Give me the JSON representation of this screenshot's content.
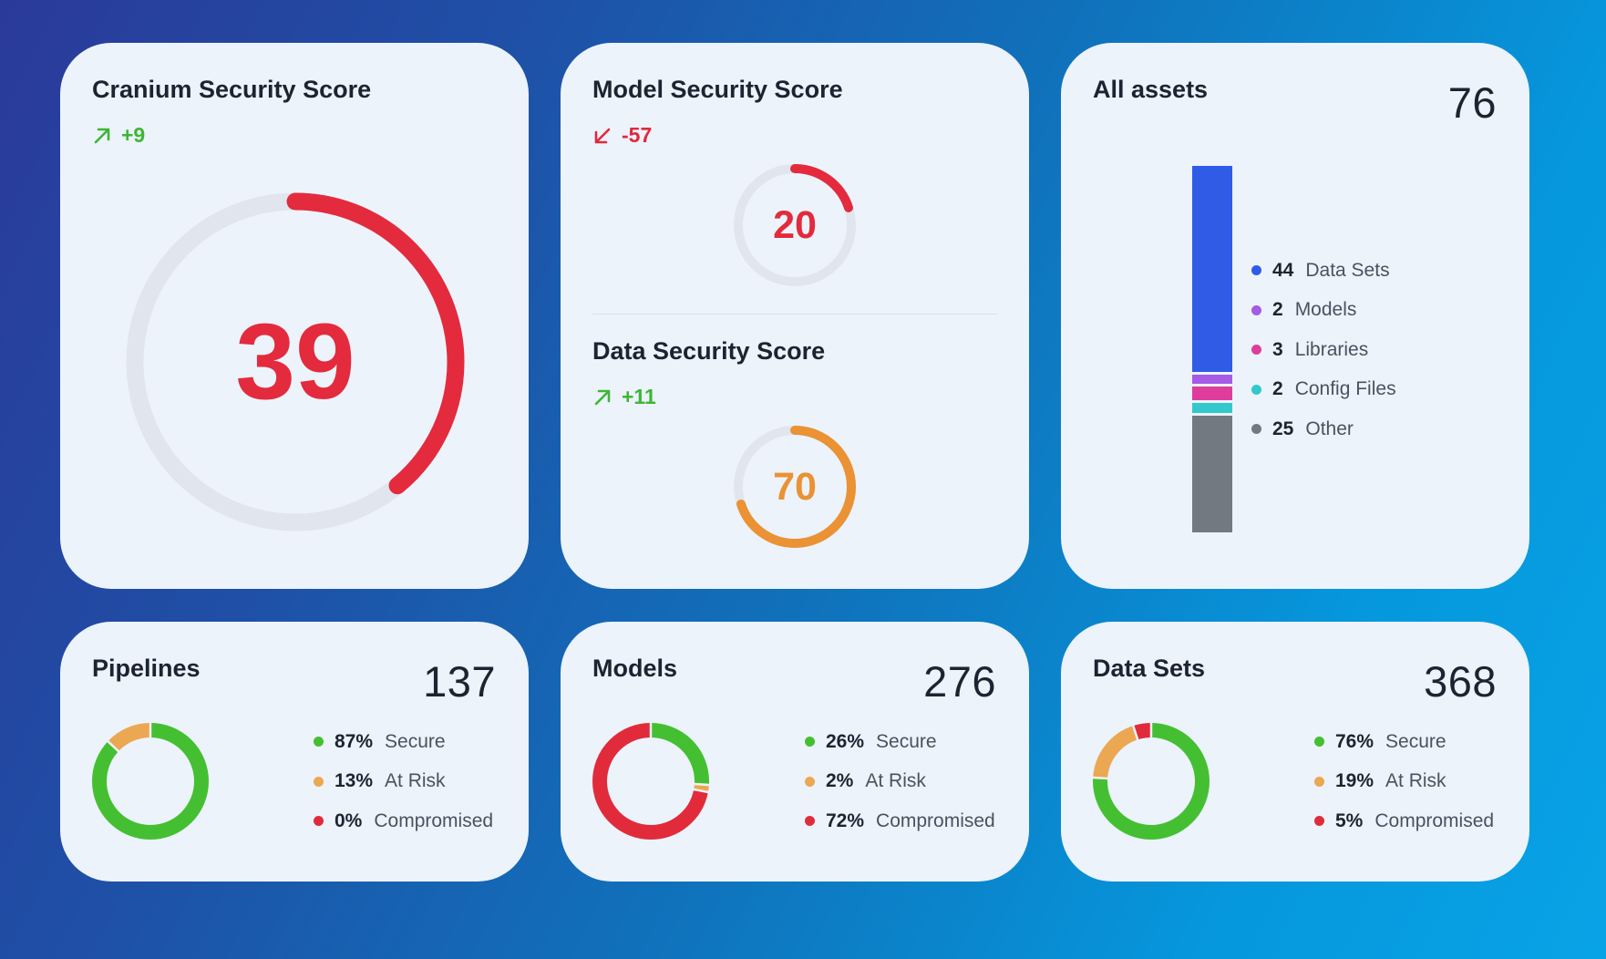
{
  "cranium": {
    "title": "Cranium Security Score",
    "delta": "+9",
    "delta_direction": "up",
    "score": "39",
    "score_value": 39,
    "color": "#e32b3d"
  },
  "model_score": {
    "title": "Model Security Score",
    "delta": "-57",
    "delta_direction": "down",
    "score": "20",
    "score_value": 20,
    "color": "#e32b3d"
  },
  "data_score": {
    "title": "Data Security Score",
    "delta": "+11",
    "delta_direction": "up",
    "score": "70",
    "score_value": 70,
    "color": "#ea9234"
  },
  "assets": {
    "title": "All assets",
    "total": "76",
    "items": [
      {
        "count": "44",
        "label": "Data Sets",
        "value": 44,
        "color": "#2f5be7"
      },
      {
        "count": "2",
        "label": "Models",
        "value": 2,
        "color": "#a55be6"
      },
      {
        "count": "3",
        "label": "Libraries",
        "value": 3,
        "color": "#de3d9c"
      },
      {
        "count": "2",
        "label": "Config Files",
        "value": 2,
        "color": "#33c9cc"
      },
      {
        "count": "25",
        "label": "Other",
        "value": 25,
        "color": "#727981"
      }
    ]
  },
  "status_colors": {
    "secure": "#45bf32",
    "at_risk": "#eca752",
    "compromised": "#e12b3b"
  },
  "pipelines": {
    "title": "Pipelines",
    "total": "137",
    "legend": [
      {
        "pct": "87%",
        "label": "Secure",
        "value": 87,
        "key": "secure"
      },
      {
        "pct": "13%",
        "label": "At Risk",
        "value": 13,
        "key": "at_risk"
      },
      {
        "pct": "0%",
        "label": "Compromised",
        "value": 0,
        "key": "compromised"
      }
    ]
  },
  "models": {
    "title": "Models",
    "total": "276",
    "legend": [
      {
        "pct": "26%",
        "label": "Secure",
        "value": 26,
        "key": "secure"
      },
      {
        "pct": "2%",
        "label": "At Risk",
        "value": 2,
        "key": "at_risk"
      },
      {
        "pct": "72%",
        "label": "Compromised",
        "value": 72,
        "key": "compromised"
      }
    ]
  },
  "datasets": {
    "title": "Data Sets",
    "total": "368",
    "legend": [
      {
        "pct": "76%",
        "label": "Secure",
        "value": 76,
        "key": "secure"
      },
      {
        "pct": "19%",
        "label": "At Risk",
        "value": 19,
        "key": "at_risk"
      },
      {
        "pct": "5%",
        "label": "Compromised",
        "value": 5,
        "key": "compromised"
      }
    ]
  }
}
